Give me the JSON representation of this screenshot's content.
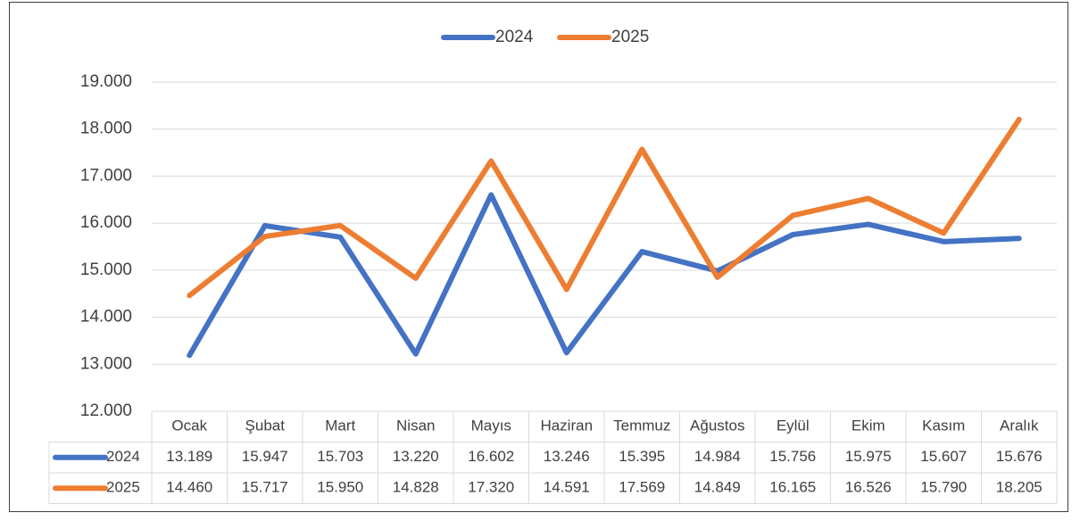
{
  "chart_data": {
    "type": "line",
    "categories": [
      "Ocak",
      "Şubat",
      "Mart",
      "Nisan",
      "Mayıs",
      "Haziran",
      "Temmuz",
      "Ağustos",
      "Eylül",
      "Ekim",
      "Kasım",
      "Aralık"
    ],
    "series": [
      {
        "name": "2024",
        "color": "#4472c4",
        "values": [
          13189,
          15947,
          15703,
          13220,
          16602,
          13246,
          15395,
          14984,
          15756,
          15975,
          15607,
          15676
        ],
        "value_labels": [
          "13.189",
          "15.947",
          "15.703",
          "13.220",
          "16.602",
          "13.246",
          "15.395",
          "14.984",
          "15.756",
          "15.975",
          "15.607",
          "15.676"
        ]
      },
      {
        "name": "2025",
        "color": "#ed7d31",
        "values": [
          14460,
          15717,
          15950,
          14828,
          17320,
          14591,
          17569,
          14849,
          16165,
          16526,
          15790,
          18205
        ],
        "value_labels": [
          "14.460",
          "15.717",
          "15.950",
          "14.828",
          "17.320",
          "14.591",
          "17.569",
          "14.849",
          "16.165",
          "16.526",
          "15.790",
          "18.205"
        ]
      }
    ],
    "ylim": [
      12000,
      19000
    ],
    "yticks": [
      {
        "value": 12000,
        "label": "12.000"
      },
      {
        "value": 13000,
        "label": "13.000"
      },
      {
        "value": 14000,
        "label": "14.000"
      },
      {
        "value": 15000,
        "label": "15.000"
      },
      {
        "value": 16000,
        "label": "16.000"
      },
      {
        "value": 17000,
        "label": "17.000"
      },
      {
        "value": 18000,
        "label": "18.000"
      },
      {
        "value": 19000,
        "label": "19.000"
      }
    ],
    "grid": true,
    "legend": "top"
  }
}
